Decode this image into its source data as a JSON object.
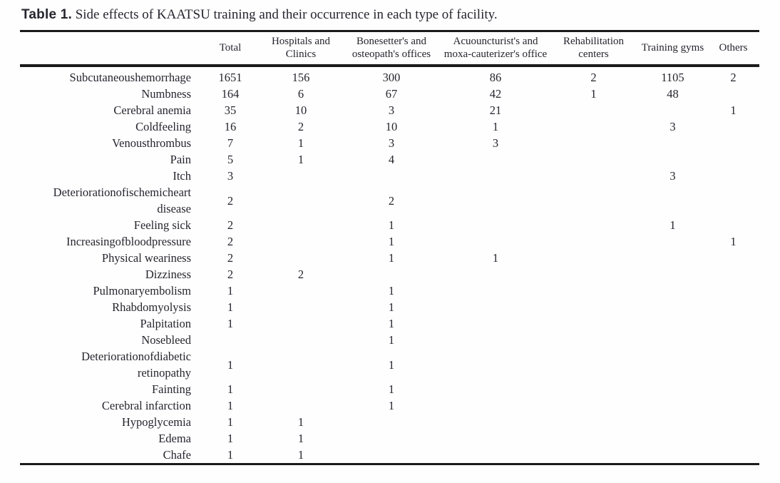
{
  "title": {
    "label": "Table 1.",
    "text": " Side effects of KAATSU training and their occurrence in each type of facility."
  },
  "colors": {
    "text": "#25252e",
    "rule": "#1b1b1b",
    "background": "#fefefe"
  },
  "table": {
    "corner": "",
    "columns": [
      "Total",
      "Hospitals and\nClinics",
      "Bonesetter's and\nosteopath's offices",
      "Acuouncturist's and\nmoxa-cauterizer's office",
      "Rehabilitation\ncenters",
      "Training gyms",
      "Others"
    ],
    "rows": [
      {
        "label": "Subcutaneoushemorrhage",
        "values": [
          "1651",
          "156",
          "300",
          "86",
          "2",
          "1105",
          "2"
        ]
      },
      {
        "label": "Numbness",
        "values": [
          "164",
          "6",
          "67",
          "42",
          "1",
          "48",
          ""
        ]
      },
      {
        "label": "Cerebral anemia",
        "values": [
          "35",
          "10",
          "3",
          "21",
          "",
          "",
          "1"
        ]
      },
      {
        "label": "Coldfeeling",
        "values": [
          "16",
          "2",
          "10",
          "1",
          "",
          "3",
          ""
        ]
      },
      {
        "label": "Venousthrombus",
        "values": [
          "7",
          "1",
          "3",
          "3",
          "",
          "",
          ""
        ]
      },
      {
        "label": "Pain",
        "values": [
          "5",
          "1",
          "4",
          "",
          "",
          "",
          ""
        ]
      },
      {
        "label": "Itch",
        "values": [
          "3",
          "",
          "",
          "",
          "",
          "3",
          ""
        ]
      },
      {
        "label": "Deteriorationofischemicheart\ndisease",
        "values": [
          "2",
          "",
          "2",
          "",
          "",
          "",
          ""
        ]
      },
      {
        "label": "Feeling sick",
        "values": [
          "2",
          "",
          "1",
          "",
          "",
          "1",
          ""
        ]
      },
      {
        "label": "Increasingofbloodpressure",
        "values": [
          "2",
          "",
          "1",
          "",
          "",
          "",
          "1"
        ]
      },
      {
        "label": "Physical weariness",
        "values": [
          "2",
          "",
          "1",
          "1",
          "",
          "",
          ""
        ]
      },
      {
        "label": "Dizziness",
        "values": [
          "2",
          "2",
          "",
          "",
          "",
          "",
          ""
        ]
      },
      {
        "label": "Pulmonaryembolism",
        "values": [
          "1",
          "",
          "1",
          "",
          "",
          "",
          ""
        ]
      },
      {
        "label": "Rhabdomyolysis",
        "values": [
          "1",
          "",
          "1",
          "",
          "",
          "",
          ""
        ]
      },
      {
        "label": "Palpitation",
        "values": [
          "1",
          "",
          "1",
          "",
          "",
          "",
          ""
        ]
      },
      {
        "label": "Nosebleed",
        "values": [
          "",
          "",
          "1",
          "",
          "",
          "",
          ""
        ]
      },
      {
        "label": "Deteriorationofdiabetic\nretinopathy",
        "values": [
          "1",
          "",
          "1",
          "",
          "",
          "",
          ""
        ]
      },
      {
        "label": "Fainting",
        "values": [
          "1",
          "",
          "1",
          "",
          "",
          "",
          ""
        ]
      },
      {
        "label": "Cerebral infarction",
        "values": [
          "1",
          "",
          "1",
          "",
          "",
          "",
          ""
        ]
      },
      {
        "label": "Hypoglycemia",
        "values": [
          "1",
          "1",
          "",
          "",
          "",
          "",
          ""
        ]
      },
      {
        "label": "Edema",
        "values": [
          "1",
          "1",
          "",
          "",
          "",
          "",
          ""
        ]
      },
      {
        "label": "Chafe",
        "values": [
          "1",
          "1",
          "",
          "",
          "",
          "",
          ""
        ]
      }
    ]
  }
}
